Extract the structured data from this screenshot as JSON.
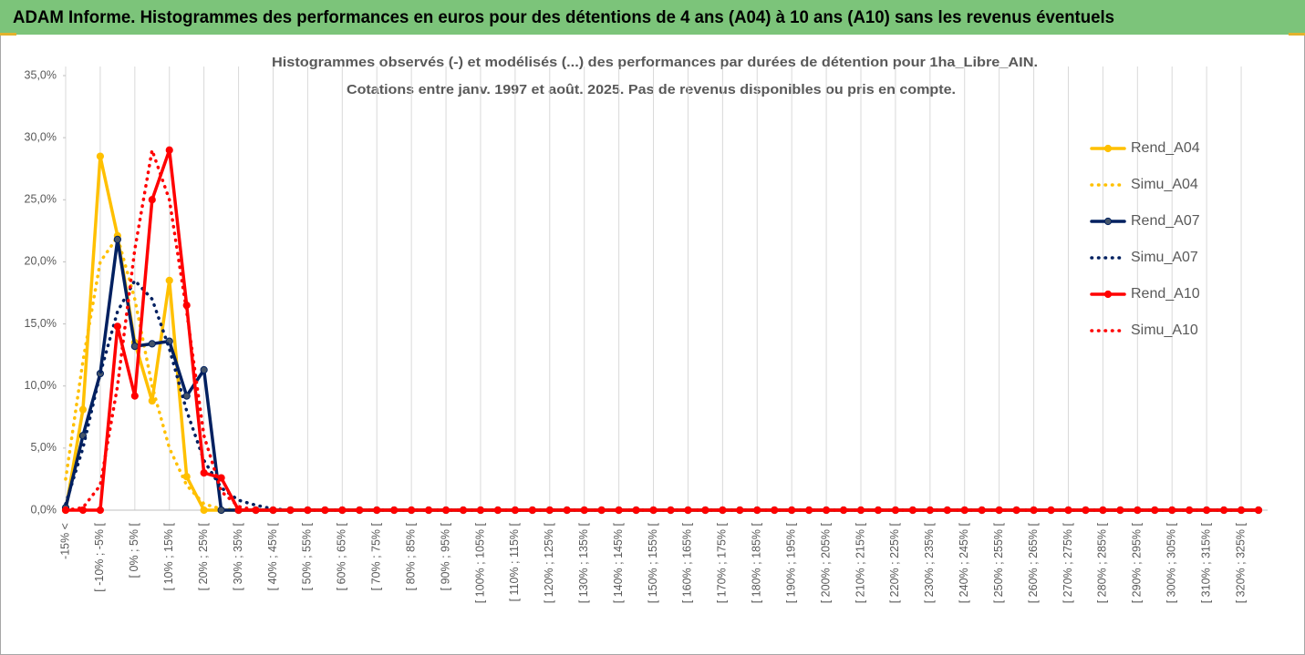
{
  "chart_data": {
    "type": "line",
    "header": "ADAM Informe. Histogrammes des performances en euros pour des détentions de 4 ans (A04) à 10 ans (A10) sans les revenus éventuels",
    "title": [
      "Histogrammes observés (-) et modélisés (...) des performances par durées de détention pour 1ha_Libre_AIN.",
      "Cotations entre janv. 1997 et août. 2025. Pas de revenus disponibles ou pris en compte."
    ],
    "categories": [
      "-15% <",
      null,
      "[ -10% ; -5% [",
      null,
      "[ 0% ; 5% [",
      null,
      "[ 10% ; 15% [",
      null,
      "[ 20% ; 25% [",
      null,
      "[ 30% ; 35% [",
      null,
      "[ 40% ; 45% [",
      null,
      "[ 50% ; 55% [",
      null,
      "[ 60% ; 65% [",
      null,
      "[ 70% ; 75% [",
      null,
      "[ 80% ; 85% [",
      null,
      "[ 90% ; 95% [",
      null,
      "[ 100% ; 105% [",
      null,
      "[ 110% ; 115% [",
      null,
      "[ 120% ; 125% [",
      null,
      "[ 130% ; 135% [",
      null,
      "[ 140% ; 145% [",
      null,
      "[ 150% ; 155% [",
      null,
      "[ 160% ; 165% [",
      null,
      "[ 170% ; 175% [",
      null,
      "[ 180% ; 185% [",
      null,
      "[ 190% ; 195% [",
      null,
      "[ 200% ; 205% [",
      null,
      "[ 210% ; 215% [",
      null,
      "[ 220% ; 225% [",
      null,
      "[ 230% ; 235% [",
      null,
      "[ 240% ; 245% [",
      null,
      "[ 250% ; 255% [",
      null,
      "[ 260% ; 265% [",
      null,
      "[ 270% ; 275% [",
      null,
      "[ 280% ; 285% [",
      null,
      "[ 290% ; 295% [",
      null,
      "[ 300% ; 305% [",
      null,
      "[ 310% ; 315% [",
      null,
      "[ 320% ; 325% [",
      null
    ],
    "series": [
      {
        "name": "Rend_A04",
        "color": "#ffc000",
        "style": "solid",
        "values": [
          0,
          8.1,
          28.5,
          22.1,
          13.5,
          8.8,
          18.5,
          2.7,
          0,
          0,
          0,
          0,
          0,
          0,
          0,
          0,
          0,
          0,
          0,
          0,
          0,
          0,
          0,
          0,
          0,
          0,
          0,
          0,
          0,
          0,
          0,
          0,
          0,
          0,
          0,
          0,
          0,
          0,
          0,
          0,
          0,
          0,
          0,
          0,
          0,
          0,
          0,
          0,
          0,
          0,
          0,
          0,
          0,
          0,
          0,
          0,
          0,
          0,
          0,
          0,
          0,
          0,
          0,
          0,
          0,
          0,
          0,
          0,
          0,
          0
        ]
      },
      {
        "name": "Simu_A04",
        "color": "#ffc000",
        "style": "dotted",
        "values": [
          2.5,
          12,
          20,
          22,
          17,
          10,
          5,
          2,
          0.5,
          0.1,
          0,
          0,
          0,
          0,
          0,
          0,
          0,
          0,
          0,
          0,
          0,
          0,
          0,
          0,
          0,
          0,
          0,
          0,
          0,
          0,
          0,
          0,
          0,
          0,
          0,
          0,
          0,
          0,
          0,
          0,
          0,
          0,
          0,
          0,
          0,
          0,
          0,
          0,
          0,
          0,
          0,
          0,
          0,
          0,
          0,
          0,
          0,
          0,
          0,
          0,
          0,
          0,
          0,
          0,
          0,
          0,
          0,
          0,
          0,
          0
        ]
      },
      {
        "name": "Rend_A07",
        "color": "#002060",
        "style": "solid",
        "values": [
          0.2,
          6,
          11,
          21.8,
          13.2,
          13.4,
          13.6,
          9.2,
          11.3,
          0,
          0,
          0,
          0,
          0,
          0,
          0,
          0,
          0,
          0,
          0,
          0,
          0,
          0,
          0,
          0,
          0,
          0,
          0,
          0,
          0,
          0,
          0,
          0,
          0,
          0,
          0,
          0,
          0,
          0,
          0,
          0,
          0,
          0,
          0,
          0,
          0,
          0,
          0,
          0,
          0,
          0,
          0,
          0,
          0,
          0,
          0,
          0,
          0,
          0,
          0,
          0,
          0,
          0,
          0,
          0,
          0,
          0,
          0,
          0,
          0
        ]
      },
      {
        "name": "Simu_A07",
        "color": "#002060",
        "style": "dotted",
        "values": [
          0.5,
          5,
          11,
          16,
          18.5,
          17,
          13,
          8,
          4,
          1.8,
          0.8,
          0.4,
          0.1,
          0,
          0,
          0,
          0,
          0,
          0,
          0,
          0,
          0,
          0,
          0,
          0,
          0,
          0,
          0,
          0,
          0,
          0,
          0,
          0,
          0,
          0,
          0,
          0,
          0,
          0,
          0,
          0,
          0,
          0,
          0,
          0,
          0,
          0,
          0,
          0,
          0,
          0,
          0,
          0,
          0,
          0,
          0,
          0,
          0,
          0,
          0,
          0,
          0,
          0,
          0,
          0,
          0,
          0,
          0,
          0,
          0
        ]
      },
      {
        "name": "Rend_A10",
        "color": "#ff0000",
        "style": "solid",
        "values": [
          0,
          0,
          0,
          14.8,
          9.2,
          25,
          29,
          16.5,
          3,
          2.6,
          0,
          0,
          0,
          0,
          0,
          0,
          0,
          0,
          0,
          0,
          0,
          0,
          0,
          0,
          0,
          0,
          0,
          0,
          0,
          0,
          0,
          0,
          0,
          0,
          0,
          0,
          0,
          0,
          0,
          0,
          0,
          0,
          0,
          0,
          0,
          0,
          0,
          0,
          0,
          0,
          0,
          0,
          0,
          0,
          0,
          0,
          0,
          0,
          0,
          0,
          0,
          0,
          0,
          0,
          0,
          0,
          0,
          0,
          0,
          0
        ]
      },
      {
        "name": "Simu_A10",
        "color": "#ff0000",
        "style": "dotted",
        "values": [
          0,
          0.2,
          2,
          10,
          21,
          29,
          25,
          16,
          6,
          1.5,
          0.3,
          0,
          0,
          0,
          0,
          0,
          0,
          0,
          0,
          0,
          0,
          0,
          0,
          0,
          0,
          0,
          0,
          0,
          0,
          0,
          0,
          0,
          0,
          0,
          0,
          0,
          0,
          0,
          0,
          0,
          0,
          0,
          0,
          0,
          0,
          0,
          0,
          0,
          0,
          0,
          0,
          0,
          0,
          0,
          0,
          0,
          0,
          0,
          0,
          0,
          0,
          0,
          0,
          0,
          0,
          0,
          0,
          0,
          0,
          0
        ]
      }
    ],
    "ylim": [
      0,
      35
    ],
    "yticks": [
      {
        "value": 0,
        "label": "0,0%"
      },
      {
        "value": 5,
        "label": "5,0%"
      },
      {
        "value": 10,
        "label": "10,0%"
      },
      {
        "value": 15,
        "label": "15,0%"
      },
      {
        "value": 20,
        "label": "20,0%"
      },
      {
        "value": 25,
        "label": "25,0%"
      },
      {
        "value": 30,
        "label": "30,0%"
      },
      {
        "value": 35,
        "label": "35,0%"
      }
    ],
    "grid": "x",
    "legend": "right"
  }
}
